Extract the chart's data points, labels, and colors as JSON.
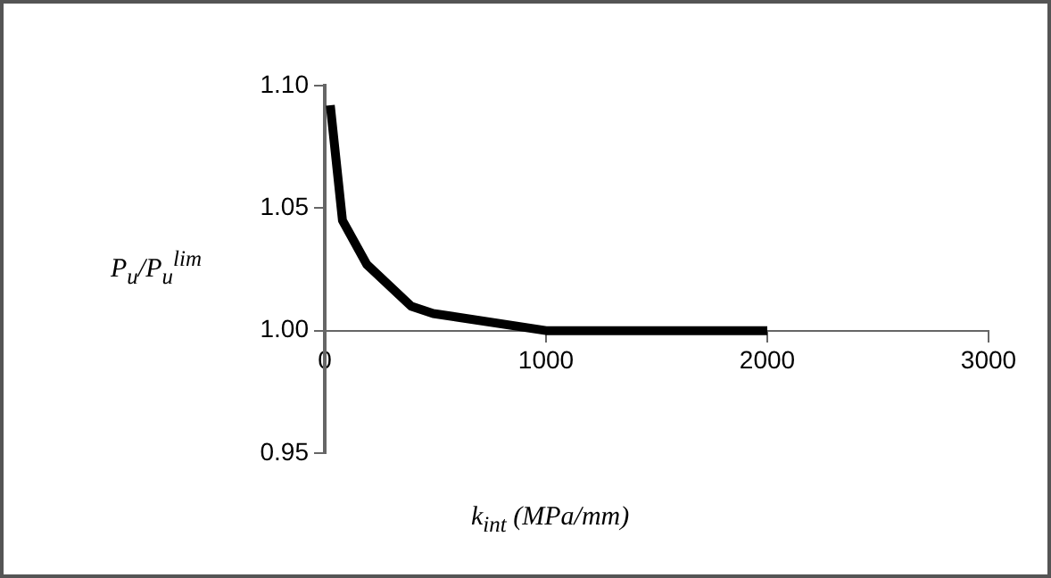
{
  "chart_data": {
    "type": "line",
    "xlabel": "k$_{int}$ (MPa/mm)",
    "ylabel": "P$_{u}$/P$_{u}$$^{lim}$",
    "series": [
      {
        "color": "#000000",
        "x": [
          25,
          80,
          190,
          390,
          490,
          1000,
          2000
        ],
        "values": [
          1.092,
          1.045,
          1.027,
          1.01,
          1.007,
          1.0,
          1.0
        ]
      }
    ],
    "xlim": [
      0,
      3000
    ],
    "xticks": [
      0,
      1000,
      2000,
      3000
    ],
    "ylim": [
      0.95,
      1.1
    ],
    "yticks": [
      {
        "value": 0.95,
        "label": "0.95"
      },
      {
        "value": 1.0,
        "label": "1.00"
      },
      {
        "value": 1.05,
        "label": "1.05"
      },
      {
        "value": 1.1,
        "label": "1.10"
      }
    ],
    "grid": false,
    "legend": false,
    "marker": "none",
    "line_style": "solid"
  }
}
